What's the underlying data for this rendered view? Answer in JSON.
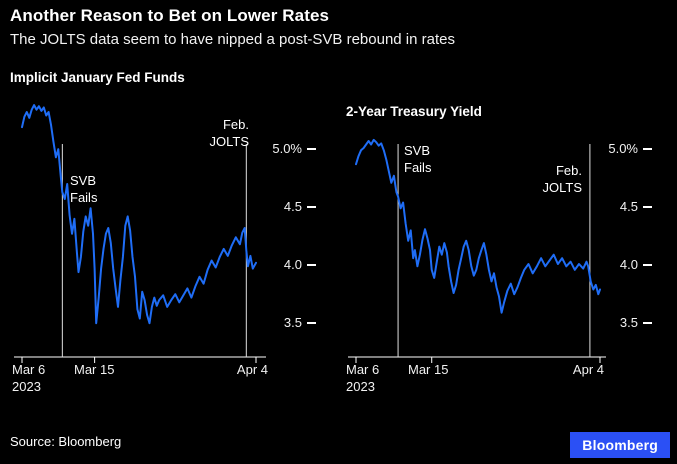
{
  "header": {
    "title": "Another Reason to Bet on Lower Rates",
    "subtitle": "The JOLTS data seem to have nipped a post-SVB rebound in rates"
  },
  "footer": {
    "source": "Source: Bloomberg",
    "logo": "Bloomberg"
  },
  "colors": {
    "background": "#000000",
    "text": "#ffffff",
    "line": "#1f6df6",
    "axis": "#ffffff",
    "event_line": "#e0e0e0",
    "logo_bg": "#2b50f5"
  },
  "chart_data": {
    "type": "line",
    "x_domain_days": [
      0,
      29
    ],
    "x_start_label": "Mar 6 2023",
    "x_end_label": "Apr 4",
    "ylim": [
      3.2,
      5.45
    ],
    "y_anchor": 5.0,
    "grid": false,
    "legend": false,
    "charts": [
      {
        "title": "Implicit January Fed Funds",
        "ylabel": "%",
        "yticks": [
          {
            "value": 5.0,
            "label": "5.0%"
          },
          {
            "value": 4.5,
            "label": "4.5"
          },
          {
            "value": 4.0,
            "label": "4.0"
          },
          {
            "value": 3.5,
            "label": "3.5"
          }
        ],
        "xticks": [
          {
            "day": 0,
            "label": "Mar 6",
            "sublabel": "2023"
          },
          {
            "day": 9,
            "label": "Mar 15",
            "sublabel": ""
          },
          {
            "day": 29,
            "label": "Apr 4",
            "sublabel": ""
          }
        ],
        "events": [
          {
            "day": 5,
            "label_lines": [
              "SVB",
              "Fails"
            ]
          },
          {
            "day": 27.8,
            "label_lines": [
              "Feb.",
              "JOLTS"
            ]
          }
        ],
        "series": [
          [
            0,
            5.18
          ],
          [
            0.3,
            5.27
          ],
          [
            0.6,
            5.31
          ],
          [
            0.9,
            5.26
          ],
          [
            1.2,
            5.33
          ],
          [
            1.5,
            5.37
          ],
          [
            1.8,
            5.33
          ],
          [
            2.1,
            5.36
          ],
          [
            2.4,
            5.32
          ],
          [
            2.7,
            5.35
          ],
          [
            3,
            5.28
          ],
          [
            3.3,
            5.31
          ],
          [
            3.6,
            5.2
          ],
          [
            3.9,
            5.05
          ],
          [
            4.2,
            4.92
          ],
          [
            4.5,
            4.99
          ],
          [
            4.8,
            4.76
          ],
          [
            5,
            4.62
          ],
          [
            5.3,
            4.56
          ],
          [
            5.6,
            4.69
          ],
          [
            5.9,
            4.42
          ],
          [
            6.2,
            4.26
          ],
          [
            6.5,
            4.39
          ],
          [
            6.8,
            4.1
          ],
          [
            7,
            3.93
          ],
          [
            7.3,
            4.06
          ],
          [
            7.6,
            4.28
          ],
          [
            7.9,
            4.41
          ],
          [
            8.2,
            4.33
          ],
          [
            8.5,
            4.48
          ],
          [
            8.8,
            4.26
          ],
          [
            9,
            3.96
          ],
          [
            9.2,
            3.49
          ],
          [
            9.5,
            3.71
          ],
          [
            9.8,
            3.96
          ],
          [
            10.1,
            4.13
          ],
          [
            10.4,
            4.26
          ],
          [
            10.7,
            4.31
          ],
          [
            11,
            4.18
          ],
          [
            11.3,
            3.96
          ],
          [
            11.6,
            3.79
          ],
          [
            11.9,
            3.63
          ],
          [
            12.2,
            3.86
          ],
          [
            12.5,
            4.06
          ],
          [
            12.8,
            4.33
          ],
          [
            13.1,
            4.41
          ],
          [
            13.4,
            4.29
          ],
          [
            13.7,
            4.06
          ],
          [
            14,
            3.89
          ],
          [
            14.3,
            3.61
          ],
          [
            14.6,
            3.53
          ],
          [
            14.9,
            3.76
          ],
          [
            15.2,
            3.69
          ],
          [
            15.5,
            3.56
          ],
          [
            15.8,
            3.49
          ],
          [
            16.1,
            3.63
          ],
          [
            16.4,
            3.71
          ],
          [
            16.7,
            3.64
          ],
          [
            17,
            3.69
          ],
          [
            17.5,
            3.73
          ],
          [
            18,
            3.63
          ],
          [
            18.5,
            3.69
          ],
          [
            19,
            3.74
          ],
          [
            19.5,
            3.67
          ],
          [
            20,
            3.73
          ],
          [
            20.5,
            3.79
          ],
          [
            21,
            3.71
          ],
          [
            21.5,
            3.81
          ],
          [
            22,
            3.89
          ],
          [
            22.5,
            3.83
          ],
          [
            23,
            3.95
          ],
          [
            23.5,
            4.03
          ],
          [
            24,
            3.97
          ],
          [
            24.5,
            4.06
          ],
          [
            25,
            4.13
          ],
          [
            25.5,
            4.07
          ],
          [
            26,
            4.16
          ],
          [
            26.5,
            4.23
          ],
          [
            27,
            4.17
          ],
          [
            27.3,
            4.27
          ],
          [
            27.6,
            4.31
          ],
          [
            27.8,
            4.12
          ],
          [
            28,
            3.98
          ],
          [
            28.3,
            4.07
          ],
          [
            28.6,
            3.96
          ],
          [
            29,
            4.01
          ]
        ]
      },
      {
        "title": "2-Year Treasury Yield",
        "ylabel": "%",
        "yticks": [
          {
            "value": 5.0,
            "label": "5.0%"
          },
          {
            "value": 4.5,
            "label": "4.5"
          },
          {
            "value": 4.0,
            "label": "4.0"
          },
          {
            "value": 3.5,
            "label": "3.5"
          }
        ],
        "xticks": [
          {
            "day": 0,
            "label": "Mar 6",
            "sublabel": "2023"
          },
          {
            "day": 9,
            "label": "Mar 15",
            "sublabel": ""
          },
          {
            "day": 29,
            "label": "Apr 4",
            "sublabel": ""
          }
        ],
        "events": [
          {
            "day": 5,
            "label_lines": [
              "SVB",
              "Fails"
            ]
          },
          {
            "day": 27.8,
            "label_lines": [
              "Feb.",
              "JOLTS"
            ]
          }
        ],
        "series": [
          [
            0,
            4.86
          ],
          [
            0.3,
            4.93
          ],
          [
            0.6,
            4.98
          ],
          [
            0.9,
            5.0
          ],
          [
            1.2,
            5.03
          ],
          [
            1.5,
            5.06
          ],
          [
            1.8,
            5.03
          ],
          [
            2.1,
            5.07
          ],
          [
            2.4,
            5.05
          ],
          [
            2.7,
            5.02
          ],
          [
            3,
            5.04
          ],
          [
            3.3,
            4.98
          ],
          [
            3.6,
            4.9
          ],
          [
            3.9,
            4.8
          ],
          [
            4.2,
            4.7
          ],
          [
            4.5,
            4.76
          ],
          [
            4.8,
            4.62
          ],
          [
            5,
            4.58
          ],
          [
            5.3,
            4.48
          ],
          [
            5.6,
            4.53
          ],
          [
            5.9,
            4.35
          ],
          [
            6.2,
            4.2
          ],
          [
            6.5,
            4.29
          ],
          [
            6.8,
            4.05
          ],
          [
            7,
            4.12
          ],
          [
            7.3,
            3.98
          ],
          [
            7.6,
            4.08
          ],
          [
            7.9,
            4.21
          ],
          [
            8.2,
            4.3
          ],
          [
            8.5,
            4.22
          ],
          [
            8.8,
            4.12
          ],
          [
            9,
            3.95
          ],
          [
            9.3,
            3.88
          ],
          [
            9.6,
            4.02
          ],
          [
            9.9,
            4.15
          ],
          [
            10.2,
            4.08
          ],
          [
            10.5,
            4.18
          ],
          [
            10.8,
            4.1
          ],
          [
            11,
            3.98
          ],
          [
            11.3,
            3.85
          ],
          [
            11.6,
            3.75
          ],
          [
            11.9,
            3.82
          ],
          [
            12.2,
            3.95
          ],
          [
            12.5,
            4.05
          ],
          [
            12.8,
            4.15
          ],
          [
            13.1,
            4.2
          ],
          [
            13.4,
            4.12
          ],
          [
            13.7,
            3.98
          ],
          [
            14,
            3.9
          ],
          [
            14.3,
            3.95
          ],
          [
            14.6,
            4.05
          ],
          [
            14.9,
            4.12
          ],
          [
            15.2,
            4.18
          ],
          [
            15.5,
            4.08
          ],
          [
            15.8,
            3.95
          ],
          [
            16.1,
            3.85
          ],
          [
            16.4,
            3.92
          ],
          [
            16.7,
            3.8
          ],
          [
            17,
            3.72
          ],
          [
            17.3,
            3.58
          ],
          [
            17.6,
            3.67
          ],
          [
            18,
            3.77
          ],
          [
            18.4,
            3.83
          ],
          [
            18.8,
            3.74
          ],
          [
            19.2,
            3.8
          ],
          [
            19.6,
            3.88
          ],
          [
            20,
            3.95
          ],
          [
            20.5,
            4.0
          ],
          [
            21,
            3.92
          ],
          [
            21.5,
            3.98
          ],
          [
            22,
            4.05
          ],
          [
            22.5,
            3.98
          ],
          [
            23,
            4.03
          ],
          [
            23.5,
            4.08
          ],
          [
            24,
            4.0
          ],
          [
            24.5,
            4.05
          ],
          [
            25,
            3.98
          ],
          [
            25.5,
            4.02
          ],
          [
            26,
            3.95
          ],
          [
            26.5,
            4.0
          ],
          [
            27,
            3.96
          ],
          [
            27.4,
            4.02
          ],
          [
            27.6,
            3.98
          ],
          [
            27.9,
            3.85
          ],
          [
            28.2,
            3.78
          ],
          [
            28.5,
            3.82
          ],
          [
            28.8,
            3.74
          ],
          [
            29,
            3.78
          ]
        ]
      }
    ]
  }
}
